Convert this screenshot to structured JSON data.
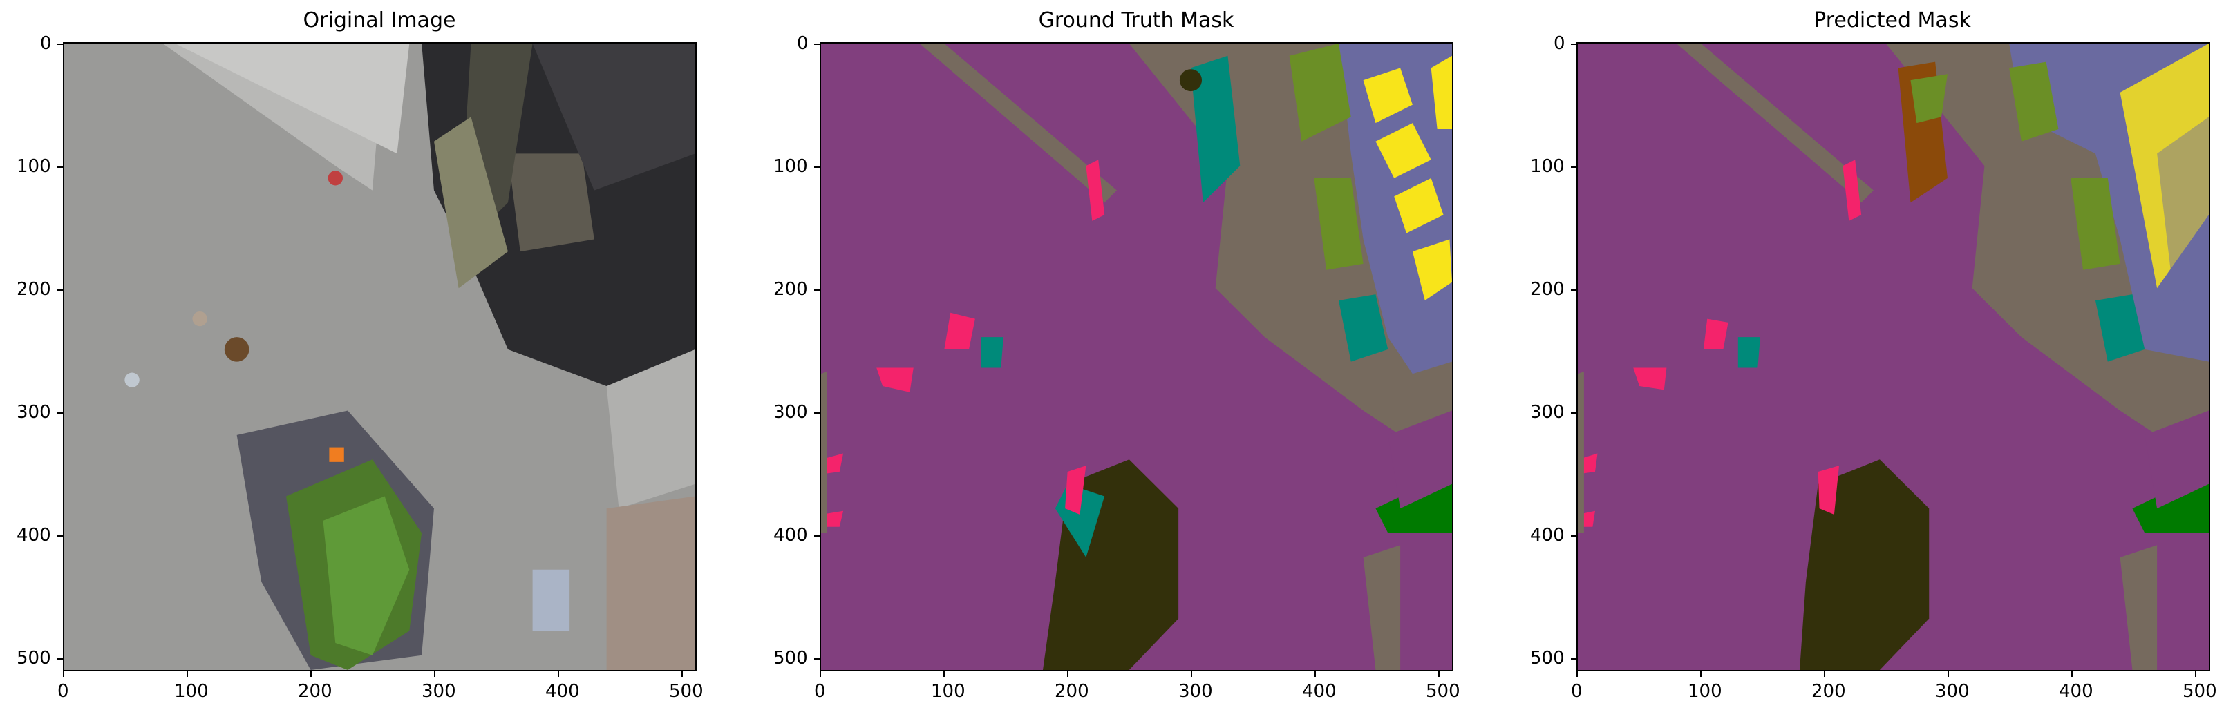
{
  "figure": {
    "panels": [
      {
        "id": "original",
        "title": "Original Image"
      },
      {
        "id": "gt",
        "title": "Ground Truth Mask"
      },
      {
        "id": "pred",
        "title": "Predicted Mask"
      }
    ],
    "x_ticks": [
      "0",
      "100",
      "200",
      "300",
      "400",
      "500"
    ],
    "y_ticks": [
      "0",
      "100",
      "200",
      "300",
      "400",
      "500"
    ],
    "axis_max": 512,
    "tick_values": [
      0,
      100,
      200,
      300,
      400,
      500
    ]
  },
  "colors": {
    "asphalt": "#9a9a98",
    "background_class": "#813f7e",
    "ground_class": "#766a5e",
    "roof_class": "#6a6aa0",
    "vegetation_class": "#6b8f26",
    "tree_class": "#33300b",
    "person_class": "#f4236b",
    "object_class": "#008a7a",
    "window_class": "#f8e41a",
    "grass_class": "#007a00"
  }
}
